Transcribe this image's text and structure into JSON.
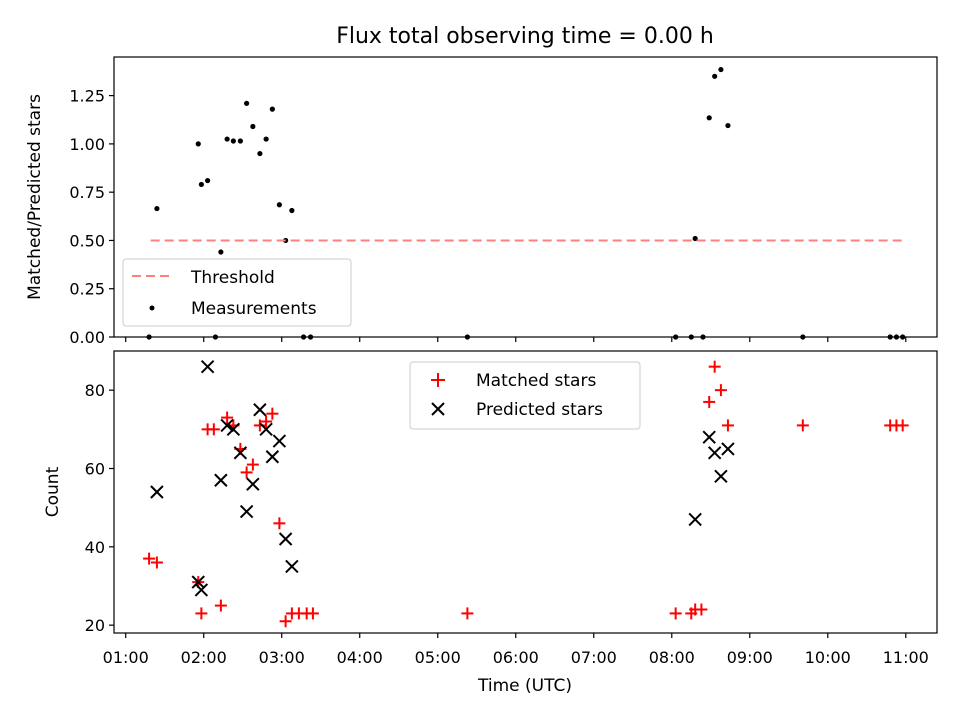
{
  "title": "Flux total observing time = 0.00 h",
  "chart_data": [
    {
      "type": "scatter",
      "ylabel": "Matched/Predicted stars",
      "xlim": [
        0.85,
        11.4
      ],
      "ylim": [
        0,
        1.45
      ],
      "yticks": [
        0.0,
        0.25,
        0.5,
        0.75,
        1.0,
        1.25
      ],
      "ytick_labels": [
        "0.00",
        "0.25",
        "0.50",
        "0.75",
        "1.00",
        "1.25"
      ],
      "threshold": {
        "name": "Threshold",
        "value": 0.5,
        "x": [
          1.32,
          10.99
        ],
        "color": "#ff7f7f"
      },
      "series": [
        {
          "name": "Measurements",
          "color": "#000000",
          "points": [
            [
              1.3,
              0.0
            ],
            [
              1.4,
              0.665
            ],
            [
              1.93,
              1.0
            ],
            [
              1.97,
              0.79
            ],
            [
              2.05,
              0.81
            ],
            [
              2.15,
              0.0
            ],
            [
              2.22,
              0.44
            ],
            [
              2.3,
              1.025
            ],
            [
              2.38,
              1.015
            ],
            [
              2.47,
              1.015
            ],
            [
              2.55,
              1.21
            ],
            [
              2.63,
              1.09
            ],
            [
              2.72,
              0.95
            ],
            [
              2.8,
              1.025
            ],
            [
              2.88,
              1.18
            ],
            [
              2.97,
              0.685
            ],
            [
              3.05,
              0.5
            ],
            [
              3.13,
              0.655
            ],
            [
              3.28,
              0.0
            ],
            [
              3.37,
              0.0
            ],
            [
              5.38,
              0.0
            ],
            [
              8.05,
              0.0
            ],
            [
              8.25,
              0.0
            ],
            [
              8.3,
              0.51
            ],
            [
              8.4,
              0.0
            ],
            [
              8.48,
              1.135
            ],
            [
              8.55,
              1.35
            ],
            [
              8.63,
              1.385
            ],
            [
              8.72,
              1.095
            ],
            [
              9.68,
              0.0
            ],
            [
              10.8,
              0.0
            ],
            [
              10.88,
              0.0
            ],
            [
              10.96,
              0.0
            ]
          ]
        }
      ],
      "legend": {
        "position": "lower-left",
        "entries": [
          "Threshold",
          "Measurements"
        ]
      }
    },
    {
      "type": "scatter",
      "xlabel": "Time (UTC)",
      "ylabel": "Count",
      "xlim": [
        0.85,
        11.4
      ],
      "ylim": [
        18,
        90
      ],
      "yticks": [
        20,
        40,
        60,
        80
      ],
      "ytick_labels": [
        "20",
        "40",
        "60",
        "80"
      ],
      "xticks": [
        1,
        2,
        3,
        4,
        5,
        6,
        7,
        8,
        9,
        10,
        11
      ],
      "xtick_labels": [
        "01:00",
        "02:00",
        "03:00",
        "04:00",
        "05:00",
        "06:00",
        "07:00",
        "08:00",
        "09:00",
        "10:00",
        "11:00"
      ],
      "series": [
        {
          "name": "Matched stars",
          "marker": "+",
          "color": "#ff0000",
          "points": [
            [
              1.3,
              37
            ],
            [
              1.4,
              36
            ],
            [
              1.93,
              31
            ],
            [
              1.97,
              23
            ],
            [
              2.05,
              70
            ],
            [
              2.13,
              70
            ],
            [
              2.22,
              25
            ],
            [
              2.3,
              73
            ],
            [
              2.38,
              71
            ],
            [
              2.47,
              65
            ],
            [
              2.55,
              59
            ],
            [
              2.63,
              61
            ],
            [
              2.72,
              71
            ],
            [
              2.8,
              72
            ],
            [
              2.88,
              74
            ],
            [
              2.97,
              46
            ],
            [
              3.05,
              21
            ],
            [
              3.13,
              23
            ],
            [
              3.22,
              23
            ],
            [
              3.32,
              23
            ],
            [
              3.4,
              23
            ],
            [
              5.38,
              23
            ],
            [
              8.05,
              23
            ],
            [
              8.25,
              23
            ],
            [
              8.3,
              24
            ],
            [
              8.38,
              24
            ],
            [
              8.48,
              77
            ],
            [
              8.55,
              86
            ],
            [
              8.63,
              80
            ],
            [
              8.72,
              71
            ],
            [
              9.68,
              71
            ],
            [
              10.8,
              71
            ],
            [
              10.88,
              71
            ],
            [
              10.96,
              71
            ]
          ]
        },
        {
          "name": "Predicted stars",
          "marker": "x",
          "color": "#000000",
          "points": [
            [
              1.4,
              54
            ],
            [
              1.93,
              31
            ],
            [
              1.97,
              29
            ],
            [
              2.05,
              86
            ],
            [
              2.22,
              57
            ],
            [
              2.3,
              71
            ],
            [
              2.38,
              70
            ],
            [
              2.47,
              64
            ],
            [
              2.55,
              49
            ],
            [
              2.63,
              56
            ],
            [
              2.72,
              75
            ],
            [
              2.8,
              70
            ],
            [
              2.88,
              63
            ],
            [
              2.97,
              67
            ],
            [
              3.05,
              42
            ],
            [
              3.13,
              35
            ],
            [
              8.3,
              47
            ],
            [
              8.48,
              68
            ],
            [
              8.55,
              64
            ],
            [
              8.63,
              58
            ],
            [
              8.72,
              65
            ]
          ]
        }
      ],
      "legend": {
        "position": "upper-center",
        "entries": [
          "Matched stars",
          "Predicted stars"
        ]
      }
    }
  ]
}
